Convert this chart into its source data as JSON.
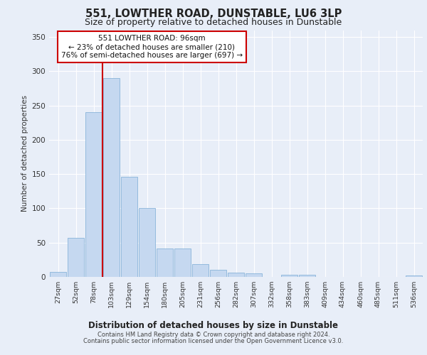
{
  "title": "551, LOWTHER ROAD, DUNSTABLE, LU6 3LP",
  "subtitle": "Size of property relative to detached houses in Dunstable",
  "xlabel": "Distribution of detached houses by size in Dunstable",
  "ylabel": "Number of detached properties",
  "bar_labels": [
    "27sqm",
    "52sqm",
    "78sqm",
    "103sqm",
    "129sqm",
    "154sqm",
    "180sqm",
    "205sqm",
    "231sqm",
    "256sqm",
    "282sqm",
    "307sqm",
    "332sqm",
    "358sqm",
    "383sqm",
    "409sqm",
    "434sqm",
    "460sqm",
    "485sqm",
    "511sqm",
    "536sqm"
  ],
  "bar_values": [
    7,
    57,
    240,
    290,
    146,
    100,
    41,
    41,
    19,
    10,
    6,
    5,
    0,
    3,
    3,
    0,
    0,
    0,
    0,
    0,
    2
  ],
  "bar_color": "#c5d8f0",
  "bar_edge_color": "#7aaad4",
  "vline_x_index": 2,
  "vline_color": "#cc0000",
  "annotation_text": "551 LOWTHER ROAD: 96sqm\n← 23% of detached houses are smaller (210)\n76% of semi-detached houses are larger (697) →",
  "annotation_box_color": "#ffffff",
  "annotation_box_edge": "#cc0000",
  "ylim": [
    0,
    360
  ],
  "yticks": [
    0,
    50,
    100,
    150,
    200,
    250,
    300,
    350
  ],
  "bg_color": "#e8eef8",
  "plot_bg_color": "#e8eef8",
  "grid_color": "#ffffff",
  "footer1": "Contains HM Land Registry data © Crown copyright and database right 2024.",
  "footer2": "Contains public sector information licensed under the Open Government Licence v3.0."
}
